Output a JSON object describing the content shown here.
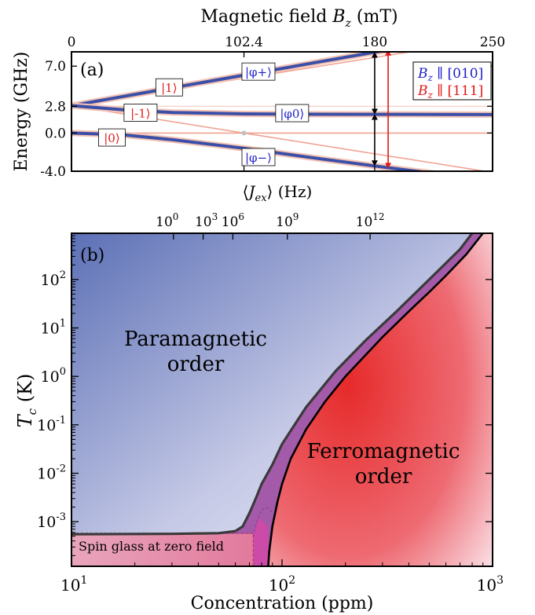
{
  "chart_data": [
    {
      "panel": "(a)",
      "type": "line",
      "xlabel_top": "Magnetic field B_z (mT)",
      "xlabel_parts": {
        "text": "Magnetic field ",
        "var": "B",
        "sub": "z",
        "unit": " (mT)"
      },
      "ylabel": "Energy (GHz)",
      "xlim": [
        0,
        250
      ],
      "ylim": [
        -4.0,
        8.5
      ],
      "x_ticks": [
        "0",
        "102.4",
        "180",
        "250"
      ],
      "x_tick_values": [
        0,
        102.4,
        180,
        250
      ],
      "y_ticks": [
        "7.0",
        "2.8",
        "0.0",
        "-4.0"
      ],
      "y_tick_values": [
        7.0,
        2.8,
        0.0,
        -4.0
      ],
      "series": [
        {
          "name": "|φ+⟩",
          "color": "#3a4fa8",
          "points": [
            [
              0,
              2.87
            ],
            [
              50,
              4.43
            ],
            [
              100,
              5.98
            ],
            [
              150,
              7.54
            ],
            [
              180,
              8.47
            ],
            [
              250,
              10.6
            ]
          ]
        },
        {
          "name": "|φ0⟩",
          "color": "#3a4fa8",
          "points": [
            [
              0,
              2.87
            ],
            [
              30,
              2.45
            ],
            [
              60,
              2.15
            ],
            [
              102.4,
              2.0
            ],
            [
              150,
              1.96
            ],
            [
              250,
              1.93
            ]
          ]
        },
        {
          "name": "|φ−⟩",
          "color": "#3a4fa8",
          "points": [
            [
              0,
              0.0
            ],
            [
              30,
              -0.18
            ],
            [
              60,
              -0.7
            ],
            [
              102.4,
              -1.6
            ],
            [
              150,
              -2.75
            ],
            [
              180,
              -3.45
            ],
            [
              250,
              -5.0
            ]
          ]
        },
        {
          "name": "|1⟩",
          "color": "#f0a494",
          "points": [
            [
              0,
              2.87
            ],
            [
              250,
              9.87
            ]
          ]
        },
        {
          "name": "|-1⟩",
          "color": "#f0a494",
          "points": [
            [
              0,
              2.87
            ],
            [
              102.4,
              0.0
            ],
            [
              250,
              -4.13
            ]
          ]
        },
        {
          "name": "|0⟩",
          "color": "#f0a494",
          "points": [
            [
              0,
              0.0
            ],
            [
              250,
              0.0
            ]
          ]
        }
      ],
      "state_labels": {
        "blue": [
          "|φ+⟩",
          "|φ0⟩",
          "|φ−⟩"
        ],
        "red": [
          "|1⟩",
          "|-1⟩",
          "|0⟩"
        ]
      },
      "legend": [
        "B_z ∥ [010]",
        "B_z ∥ [111]"
      ],
      "legend_placement": "top-right",
      "legend_colors": [
        "#2020c8",
        "#e01818"
      ],
      "arrows": [
        {
          "x": 180,
          "from": -3.45,
          "to": 1.96,
          "color": "#000000"
        },
        {
          "x": 180,
          "from": 1.96,
          "to": 8.47,
          "color": "#000000"
        },
        {
          "x": 188,
          "from": -3.7,
          "to": 8.7,
          "color": "#e01818"
        }
      ]
    },
    {
      "panel": "(b)",
      "type": "area",
      "xlabel": "Concentration (ppm)",
      "ylabel": "T_c (K)",
      "ylabel_parts": {
        "var": "T",
        "sub": "c",
        "unit": " (K)"
      },
      "xlabel_top": "⟨J_ex⟩ (Hz)",
      "xlabel_top_parts": {
        "open": "⟨",
        "var": "J",
        "sub": "ex",
        "close": "⟩",
        "unit": " (Hz)"
      },
      "x_scale": "log",
      "y_scale": "log",
      "xlim": [
        10,
        1000
      ],
      "ylim": [
        0.00012,
        900
      ],
      "x_ticks": [
        {
          "value": 10,
          "base": "10",
          "exp": "1"
        },
        {
          "value": 100,
          "base": "10",
          "exp": "2"
        },
        {
          "value": 1000,
          "base": "10",
          "exp": "3"
        }
      ],
      "y_ticks": [
        {
          "value": 0.001,
          "base": "10",
          "exp": "-3"
        },
        {
          "value": 0.01,
          "base": "10",
          "exp": "-2"
        },
        {
          "value": 0.1,
          "base": "10",
          "exp": "-1"
        },
        {
          "value": 1,
          "base": "10",
          "exp": "0"
        },
        {
          "value": 10,
          "base": "10",
          "exp": "1"
        },
        {
          "value": 100,
          "base": "10",
          "exp": "2"
        }
      ],
      "top_ticks": [
        {
          "conc": 30.5,
          "base": "10",
          "exp": "0"
        },
        {
          "conc": 42.2,
          "base": "10",
          "exp": "3"
        },
        {
          "conc": 58.4,
          "base": "10",
          "exp": "6"
        },
        {
          "conc": 106,
          "base": "10",
          "exp": "9"
        },
        {
          "conc": 262,
          "base": "10",
          "exp": "12"
        }
      ],
      "paramagnetic_boundary": [
        [
          10,
          0.00055
        ],
        [
          30,
          0.00056
        ],
        [
          50,
          0.00058
        ],
        [
          60,
          0.00064
        ],
        [
          65,
          0.0008
        ],
        [
          70,
          0.0015
        ],
        [
          75,
          0.003
        ],
        [
          80,
          0.006
        ],
        [
          90,
          0.015
        ],
        [
          100,
          0.04
        ],
        [
          130,
          0.23
        ],
        [
          180,
          1.3
        ],
        [
          250,
          5.6
        ],
        [
          350,
          22
        ],
        [
          500,
          100
        ],
        [
          700,
          420
        ],
        [
          800,
          900
        ]
      ],
      "ferromagnetic_boundary": [
        [
          86,
          0.00012
        ],
        [
          87,
          0.00025
        ],
        [
          90,
          0.0008
        ],
        [
          95,
          0.0025
        ],
        [
          100,
          0.006
        ],
        [
          110,
          0.02
        ],
        [
          130,
          0.08
        ],
        [
          160,
          0.3
        ],
        [
          200,
          1.0
        ],
        [
          300,
          6.5
        ],
        [
          400,
          22
        ],
        [
          500,
          55
        ],
        [
          600,
          120
        ],
        [
          750,
          330
        ],
        [
          900,
          900
        ]
      ],
      "spin_glass_boundary": [
        [
          10,
          0.00055
        ],
        [
          73,
          0.00056
        ],
        [
          73,
          0.00012
        ]
      ],
      "regions": [
        {
          "label": [
            "Paramagnetic",
            "order"
          ],
          "color": "#5d72b8"
        },
        {
          "label": [
            "Ferromagnetic",
            "order"
          ],
          "color": "#e83535"
        },
        {
          "label": [
            "Spin glass at zero field"
          ],
          "color": "#e8a0b8"
        }
      ]
    }
  ]
}
